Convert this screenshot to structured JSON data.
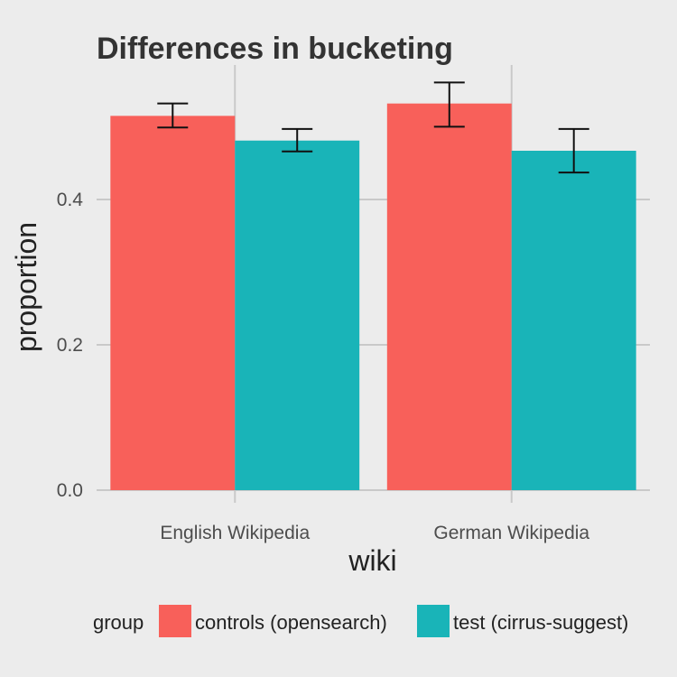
{
  "chart_data": {
    "type": "bar",
    "title": "Differences in bucketing",
    "xlabel": "wiki",
    "ylabel": "proportion",
    "categories": [
      "English Wikipedia",
      "German Wikipedia"
    ],
    "series": [
      {
        "name": "controls (opensearch)",
        "color": "#f8605a",
        "values": [
          0.515,
          0.532
        ],
        "error_low": [
          0.499,
          0.5
        ],
        "error_high": [
          0.532,
          0.561
        ]
      },
      {
        "name": "test (cirrus-suggest)",
        "color": "#19b4b8",
        "values": [
          0.481,
          0.467
        ],
        "error_low": [
          0.466,
          0.437
        ],
        "error_high": [
          0.497,
          0.497
        ]
      }
    ],
    "ylim": [
      0,
      0.585
    ],
    "yticks": [
      0.0,
      0.2,
      0.4
    ],
    "ytick_labels": [
      "0.0",
      "0.2",
      "0.4"
    ],
    "grid": true,
    "legend": {
      "title": "group",
      "placement": "bottom"
    }
  }
}
